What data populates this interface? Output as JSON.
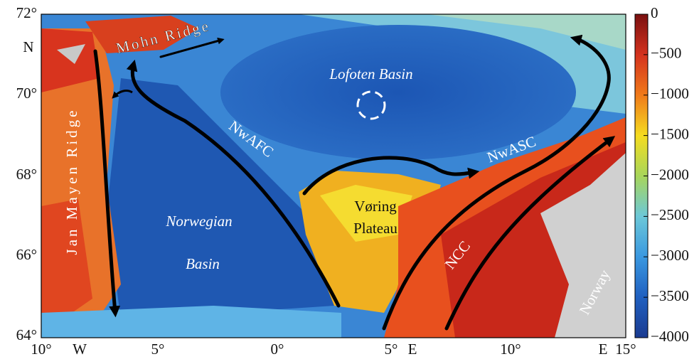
{
  "map": {
    "lat_labels": [
      "72°",
      "70°",
      "68°",
      "66°",
      "64°"
    ],
    "lat_hemisphere": "N",
    "lon_labels": [
      "10°",
      "5°",
      "0°",
      "5°",
      "10°",
      "15°"
    ],
    "lon_west": "W",
    "lon_east": "E",
    "features": {
      "mohn_ridge": "Mohn Ridge",
      "lofoten_basin": "Lofoten Basin",
      "nwafc": "NwAFC",
      "nwasc": "NwASC",
      "voring_1": "Vøring",
      "voring_2": "Plateau",
      "norwegian_basin_1": "Norwegian",
      "norwegian_basin_2": "Basin",
      "jan_mayen_ridge": "Jan Mayen Ridge",
      "ncc": "NCC",
      "norway": "Norway"
    },
    "colorbar": {
      "lim": [
        -4000,
        0
      ],
      "ticks": [
        0,
        {
          "value": -500,
          "label": "−500"
        },
        {
          "value": -1000,
          "label": "−1000"
        },
        {
          "value": -1500,
          "label": "−1500"
        },
        {
          "value": -2000,
          "label": "−2000"
        },
        {
          "value": -2500,
          "label": "−2500"
        },
        {
          "value": -3000,
          "label": "−3000"
        },
        {
          "value": -3500,
          "label": "−3500"
        },
        {
          "value": -4000,
          "label": "−4000"
        }
      ]
    }
  }
}
